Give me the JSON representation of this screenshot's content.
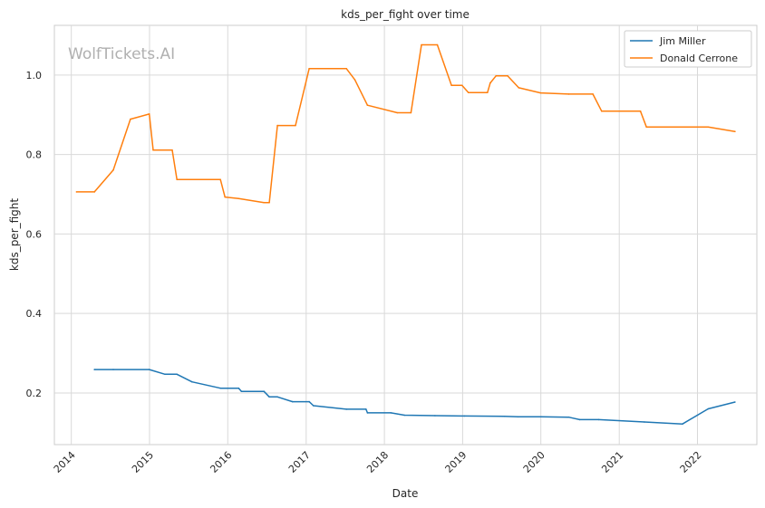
{
  "watermark": "WolfTickets.AI",
  "chart_data": {
    "type": "line",
    "title": "kds_per_fight over time",
    "xlabel": "Date",
    "ylabel": "kds_per_fight",
    "xlim": [
      "2013-10-14",
      "2022-10-05"
    ],
    "ylim": [
      0.07,
      1.125
    ],
    "x_ticks": [
      "2014",
      "2015",
      "2016",
      "2017",
      "2018",
      "2019",
      "2020",
      "2021",
      "2022"
    ],
    "y_ticks": [
      "0.2",
      "0.4",
      "0.6",
      "0.8",
      "1.0"
    ],
    "grid": true,
    "legend_position": "top-right",
    "series": [
      {
        "name": "Jim Miller",
        "color": "#1f77b4",
        "points": [
          [
            "2014-04-19",
            0.259
          ],
          [
            "2014-07-16",
            0.259
          ],
          [
            "2014-12-31",
            0.259
          ],
          [
            "2015-03-14",
            0.247
          ],
          [
            "2015-05-09",
            0.247
          ],
          [
            "2015-07-18",
            0.228
          ],
          [
            "2015-11-28",
            0.212
          ],
          [
            "2016-02-21",
            0.212
          ],
          [
            "2016-03-05",
            0.204
          ],
          [
            "2016-06-18",
            0.204
          ],
          [
            "2016-07-13",
            0.19
          ],
          [
            "2016-08-20",
            0.19
          ],
          [
            "2016-10-29",
            0.178
          ],
          [
            "2017-01-15",
            0.178
          ],
          [
            "2017-02-04",
            0.168
          ],
          [
            "2017-07-08",
            0.159
          ],
          [
            "2017-10-07",
            0.159
          ],
          [
            "2017-10-14",
            0.15
          ],
          [
            "2018-01-31",
            0.15
          ],
          [
            "2018-04-05",
            0.144
          ],
          [
            "2018-08-25",
            0.143
          ],
          [
            "2019-01-10",
            0.142
          ],
          [
            "2019-07-14",
            0.141
          ],
          [
            "2019-09-17",
            0.14
          ],
          [
            "2019-12-30",
            0.14
          ],
          [
            "2020-05-10",
            0.139
          ],
          [
            "2020-06-30",
            0.133
          ],
          [
            "2020-09-27",
            0.133
          ],
          [
            "2021-04-28",
            0.127
          ],
          [
            "2021-10-23",
            0.122
          ],
          [
            "2022-02-20",
            0.16
          ],
          [
            "2022-06-25",
            0.177
          ]
        ]
      },
      {
        "name": "Donald Cerrone",
        "color": "#ff7f0e",
        "points": [
          [
            "2014-01-25",
            0.706
          ],
          [
            "2014-04-19",
            0.706
          ],
          [
            "2014-07-16",
            0.761
          ],
          [
            "2014-10-04",
            0.889
          ],
          [
            "2014-12-31",
            0.902
          ],
          [
            "2015-01-18",
            0.811
          ],
          [
            "2015-04-17",
            0.811
          ],
          [
            "2015-05-09",
            0.737
          ],
          [
            "2015-11-28",
            0.737
          ],
          [
            "2015-12-19",
            0.693
          ],
          [
            "2016-02-21",
            0.689
          ],
          [
            "2016-06-18",
            0.679
          ],
          [
            "2016-07-13",
            0.679
          ],
          [
            "2016-08-20",
            0.873
          ],
          [
            "2016-11-12",
            0.873
          ],
          [
            "2017-01-15",
            1.016
          ],
          [
            "2017-07-08",
            1.016
          ],
          [
            "2017-08-16",
            0.988
          ],
          [
            "2017-10-14",
            0.924
          ],
          [
            "2018-03-02",
            0.905
          ],
          [
            "2018-05-05",
            0.905
          ],
          [
            "2018-06-23",
            1.076
          ],
          [
            "2018-09-05",
            1.076
          ],
          [
            "2018-11-10",
            0.974
          ],
          [
            "2018-12-29",
            0.974
          ],
          [
            "2019-01-28",
            0.956
          ],
          [
            "2019-04-27",
            0.956
          ],
          [
            "2019-05-10",
            0.98
          ],
          [
            "2019-06-06",
            0.998
          ],
          [
            "2019-07-30",
            0.998
          ],
          [
            "2019-09-20",
            0.968
          ],
          [
            "2019-12-31",
            0.955
          ],
          [
            "2020-05-10",
            0.952
          ],
          [
            "2020-08-31",
            0.952
          ],
          [
            "2020-10-11",
            0.909
          ],
          [
            "2021-04-10",
            0.909
          ],
          [
            "2021-05-08",
            0.869
          ],
          [
            "2022-01-30",
            0.869
          ],
          [
            "2022-02-20",
            0.869
          ],
          [
            "2022-06-25",
            0.858
          ]
        ]
      }
    ]
  }
}
